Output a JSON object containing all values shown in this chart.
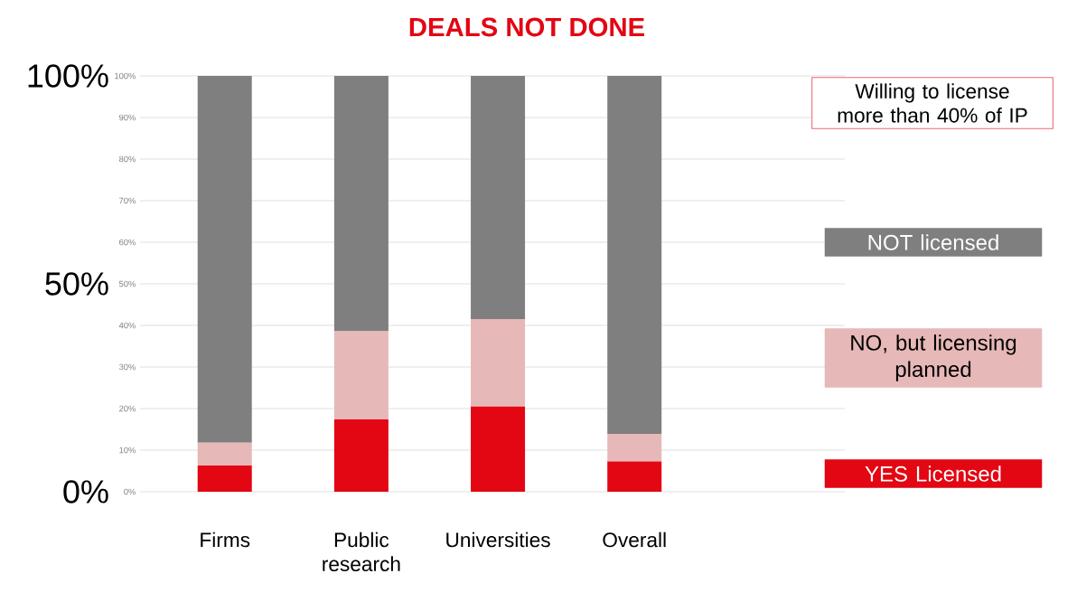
{
  "chart_data": {
    "type": "bar",
    "title": "DEALS NOT DONE",
    "stacked": true,
    "categories": [
      "Firms",
      "Public research",
      "Universities",
      "Overall"
    ],
    "series": [
      {
        "name": "YES Licensed",
        "color": "#e30613",
        "values": [
          6.3,
          17.4,
          20.5,
          7.3
        ]
      },
      {
        "name": "NO, but licensing planned",
        "color": "#e6b8b7",
        "values": [
          5.5,
          21.2,
          21.0,
          6.6
        ]
      },
      {
        "name": "NOT licensed",
        "color": "#7f7f7f",
        "values": [
          88.2,
          61.4,
          58.5,
          86.1
        ]
      }
    ],
    "ylim": [
      0,
      100
    ],
    "yticks": [
      {
        "value": 0,
        "label": "0%"
      },
      {
        "value": 50,
        "label": "50%"
      },
      {
        "value": 100,
        "label": "100%"
      }
    ],
    "y2lim": [
      0,
      100
    ],
    "y2ticks": [
      {
        "value": 0,
        "label": "0%"
      },
      {
        "value": 10,
        "label": "10%"
      },
      {
        "value": 20,
        "label": "20%"
      },
      {
        "value": 30,
        "label": "30%"
      },
      {
        "value": 40,
        "label": "40%"
      },
      {
        "value": 50,
        "label": "50%"
      },
      {
        "value": 60,
        "label": "60%"
      },
      {
        "value": 70,
        "label": "70%"
      },
      {
        "value": 80,
        "label": "80%"
      },
      {
        "value": 90,
        "label": "90%"
      },
      {
        "value": 100,
        "label": "100%"
      }
    ],
    "grid": "y",
    "legend": "right",
    "annotations": [
      "Willing to license more than 40% of IP"
    ]
  }
}
